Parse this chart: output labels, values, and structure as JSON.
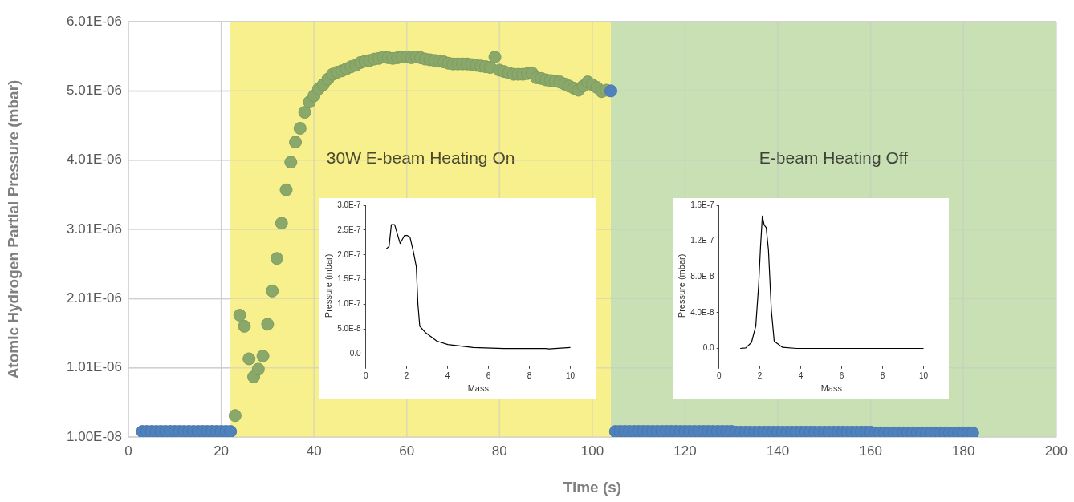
{
  "chart_data": [
    {
      "type": "scatter",
      "xlabel": "Time (s)",
      "ylabel": "Atomic Hydrogen Partial Pressure (mbar)",
      "xlim": [
        0,
        200
      ],
      "xticks": [
        0,
        20,
        40,
        60,
        80,
        100,
        120,
        140,
        160,
        180,
        200
      ],
      "ylim": [
        1e-08,
        6.01e-06
      ],
      "yticks": [
        {
          "value": 1e-08,
          "label": "1.00E-08"
        },
        {
          "value": 1.01e-06,
          "label": "1.01E-06"
        },
        {
          "value": 2.01e-06,
          "label": "2.01E-06"
        },
        {
          "value": 3.01e-06,
          "label": "3.01E-06"
        },
        {
          "value": 4.01e-06,
          "label": "4.01E-06"
        },
        {
          "value": 5.01e-06,
          "label": "5.01E-06"
        },
        {
          "value": 6.01e-06,
          "label": "6.01E-06"
        }
      ],
      "grid": true,
      "legend": false,
      "marker": "circle",
      "bands": [
        {
          "axis": "x",
          "from": 22,
          "to": 104,
          "label": "30W E-beam Heating On",
          "color": "#f7f08c"
        },
        {
          "axis": "x",
          "from": 104,
          "to": 200,
          "label": "E-beam Heating Off",
          "color": "#c8e0b4"
        }
      ],
      "series": [
        {
          "color": "#4f81bd",
          "x": [
            3,
            4,
            5,
            6,
            7,
            8,
            9,
            10,
            11,
            12,
            13,
            14,
            15,
            16,
            17,
            18,
            19,
            20,
            21,
            22,
            104,
            105,
            106,
            107,
            108,
            109,
            110,
            111,
            112,
            113,
            114,
            115,
            116,
            117,
            118,
            119,
            120,
            121,
            122,
            123,
            124,
            125,
            126,
            127,
            128,
            129,
            130,
            131,
            132,
            133,
            134,
            135,
            136,
            137,
            138,
            139,
            140,
            141,
            142,
            143,
            144,
            145,
            146,
            147,
            148,
            149,
            150,
            151,
            152,
            153,
            154,
            155,
            156,
            157,
            158,
            159,
            160,
            161,
            162,
            163,
            164,
            165,
            166,
            167,
            168,
            169,
            170,
            171,
            172,
            173,
            174,
            175,
            176,
            177,
            178,
            179,
            180,
            181,
            182
          ],
          "values": [
            9e-08,
            9e-08,
            9e-08,
            9e-08,
            9e-08,
            9e-08,
            9e-08,
            9e-08,
            9e-08,
            9e-08,
            9e-08,
            9e-08,
            9e-08,
            9e-08,
            9e-08,
            9e-08,
            9e-08,
            9e-08,
            9e-08,
            9e-08,
            5.01e-06,
            9e-08,
            9e-08,
            9e-08,
            9e-08,
            9e-08,
            9e-08,
            9e-08,
            9e-08,
            9e-08,
            9e-08,
            9e-08,
            9e-08,
            9e-08,
            9e-08,
            9e-08,
            9e-08,
            9e-08,
            9e-08,
            9e-08,
            9e-08,
            9e-08,
            9e-08,
            9e-08,
            9e-08,
            9e-08,
            9e-08,
            8e-08,
            8e-08,
            8e-08,
            8e-08,
            8e-08,
            8e-08,
            8e-08,
            8e-08,
            8e-08,
            8e-08,
            8e-08,
            8e-08,
            8e-08,
            8e-08,
            8e-08,
            8e-08,
            8e-08,
            8e-08,
            8e-08,
            8e-08,
            8e-08,
            8e-08,
            8e-08,
            8e-08,
            8e-08,
            8e-08,
            8e-08,
            8e-08,
            8e-08,
            8e-08,
            7e-08,
            7e-08,
            7e-08,
            7e-08,
            7e-08,
            7e-08,
            7e-08,
            7e-08,
            7e-08,
            7e-08,
            7e-08,
            7e-08,
            7e-08,
            7e-08,
            7e-08,
            7e-08,
            7e-08,
            7e-08,
            7e-08,
            7e-08,
            7e-08,
            7e-08
          ]
        },
        {
          "color": "#8aa86a",
          "x": [
            23,
            24,
            25,
            26,
            27,
            28,
            29,
            30,
            31,
            32,
            33,
            34,
            35,
            36,
            37,
            38,
            39,
            40,
            41,
            42,
            43,
            44,
            45,
            46,
            47,
            48,
            49,
            50,
            51,
            52,
            53,
            54,
            55,
            56,
            57,
            58,
            59,
            60,
            61,
            62,
            63,
            64,
            65,
            66,
            67,
            68,
            69,
            70,
            71,
            72,
            73,
            74,
            75,
            76,
            77,
            78,
            79,
            80,
            81,
            82,
            83,
            84,
            85,
            86,
            87,
            88,
            89,
            90,
            91,
            92,
            93,
            94,
            95,
            96,
            97,
            98,
            99,
            100,
            101,
            102,
            103
          ],
          "values": [
            3.2e-07,
            1.77e-06,
            1.61e-06,
            1.14e-06,
            8.8e-07,
            9.9e-07,
            1.18e-06,
            1.64e-06,
            2.12e-06,
            2.59e-06,
            3.1e-06,
            3.58e-06,
            3.98e-06,
            4.27e-06,
            4.47e-06,
            4.7e-06,
            4.85e-06,
            4.94e-06,
            5.04e-06,
            5.1e-06,
            5.18e-06,
            5.25e-06,
            5.28e-06,
            5.3e-06,
            5.33e-06,
            5.36e-06,
            5.38e-06,
            5.42e-06,
            5.44e-06,
            5.45e-06,
            5.47e-06,
            5.48e-06,
            5.5e-06,
            5.49e-06,
            5.48e-06,
            5.49e-06,
            5.5e-06,
            5.5e-06,
            5.49e-06,
            5.5e-06,
            5.49e-06,
            5.47e-06,
            5.46e-06,
            5.45e-06,
            5.44e-06,
            5.43e-06,
            5.41e-06,
            5.4e-06,
            5.4e-06,
            5.4e-06,
            5.4e-06,
            5.39e-06,
            5.38e-06,
            5.37e-06,
            5.36e-06,
            5.35e-06,
            5.5e-06,
            5.31e-06,
            5.29e-06,
            5.27e-06,
            5.25e-06,
            5.25e-06,
            5.25e-06,
            5.26e-06,
            5.27e-06,
            5.2e-06,
            5.19e-06,
            5.17e-06,
            5.16e-06,
            5.15e-06,
            5.14e-06,
            5.11e-06,
            5.08e-06,
            5.05e-06,
            5.02e-06,
            5.08e-06,
            5.14e-06,
            5.1e-06,
            5.06e-06,
            5e-06,
            5.02e-06
          ]
        }
      ]
    },
    {
      "type": "line",
      "xlabel": "Mass",
      "ylabel": "Pressure (mbar)",
      "xlim": [
        0,
        11
      ],
      "xticks": [
        0,
        2,
        4,
        6,
        8,
        10
      ],
      "ylim": [
        -2.5e-08,
        3e-07
      ],
      "yticks": [
        {
          "value": 0,
          "label": "0.0"
        },
        {
          "value": 5e-08,
          "label": "5.0E-8"
        },
        {
          "value": 1e-07,
          "label": "1.0E-7"
        },
        {
          "value": 1.5e-07,
          "label": "1.5E-7"
        },
        {
          "value": 2e-07,
          "label": "2.0E-7"
        },
        {
          "value": 2.5e-07,
          "label": "2.5E-7"
        },
        {
          "value": 3e-07,
          "label": "3.0E-7"
        }
      ],
      "grid": false,
      "legend": false,
      "marker": "none",
      "line_style": "solid",
      "series": [
        {
          "color": "#000000",
          "x": [
            1.0,
            1.14,
            1.25,
            1.41,
            1.68,
            1.89,
            2.03,
            2.16,
            2.33,
            2.47,
            2.55,
            2.64,
            2.92,
            3.47,
            4.01,
            4.84,
            5.25,
            6.75,
            8.81,
            8.95,
            10
          ],
          "values": [
            2.12e-07,
            2.17e-07,
            2.61e-07,
            2.61e-07,
            2.23e-07,
            2.39e-07,
            2.39e-07,
            2.36e-07,
            2.06e-07,
            1.76e-07,
            1e-07,
            5.6e-08,
            4.3e-08,
            2.6e-08,
            1.9e-08,
            1.5e-08,
            1.3e-08,
            1.1e-08,
            1.1e-08,
            1e-08,
            1.3e-08
          ]
        }
      ]
    },
    {
      "type": "line",
      "xlabel": "Mass",
      "ylabel": "Pressure (mbar)",
      "xlim": [
        0,
        11
      ],
      "xticks": [
        0,
        2,
        4,
        6,
        8,
        10
      ],
      "ylim": [
        -2e-08,
        1.6e-07
      ],
      "yticks": [
        {
          "value": 0,
          "label": "0.0"
        },
        {
          "value": 4e-08,
          "label": "4.0E-8"
        },
        {
          "value": 8e-08,
          "label": "8.0E-8"
        },
        {
          "value": 1.2e-07,
          "label": "1.2E-7"
        },
        {
          "value": 1.6e-07,
          "label": "1.6E-7"
        }
      ],
      "grid": false,
      "legend": false,
      "marker": "none",
      "line_style": "solid",
      "series": [
        {
          "color": "#000000",
          "x": [
            1.04,
            1.31,
            1.59,
            1.8,
            1.94,
            2.03,
            2.12,
            2.21,
            2.31,
            2.42,
            2.56,
            2.7,
            3.11,
            3.8,
            10
          ],
          "values": [
            0,
            6e-10,
            6.7e-09,
            2.5e-08,
            7.1e-08,
            1.13e-07,
            1.48e-07,
            1.38e-07,
            1.35e-07,
            1.1e-07,
            4.3e-08,
            8e-09,
            1.2e-09,
            0,
            0
          ]
        }
      ]
    }
  ]
}
